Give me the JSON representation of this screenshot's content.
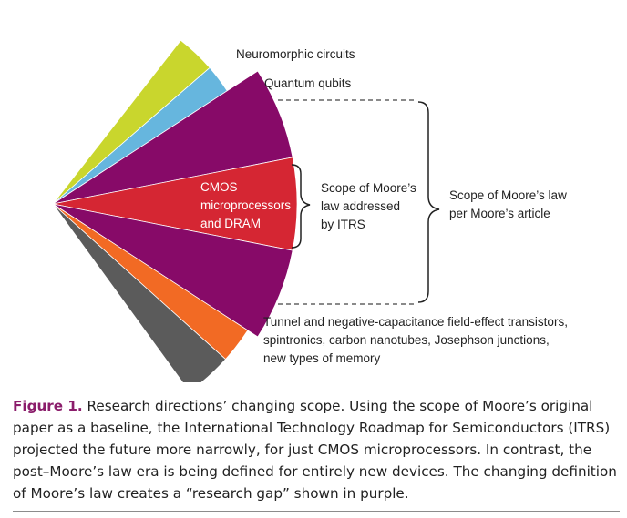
{
  "figure": {
    "segments": [
      {
        "id": "neuromorphic",
        "color": "#c9d62d"
      },
      {
        "id": "quantum",
        "color": "#66b6de"
      },
      {
        "id": "research-gap-upper",
        "color": "#870a68"
      },
      {
        "id": "cmos",
        "color": "#d52633"
      },
      {
        "id": "research-gap-lower",
        "color": "#870a68"
      },
      {
        "id": "tunnel",
        "color": "#f26a24"
      },
      {
        "id": "other",
        "color": "#5b5b5b"
      }
    ],
    "labels": {
      "neuromorphic": "Neuromorphic circuits",
      "quantum": "Quantum qubits",
      "cmos_lines": [
        "CMOS",
        "microprocessors",
        "and DRAM"
      ],
      "itrs_lines": [
        "Scope of Moore’s",
        "law addressed",
        "by ITRS"
      ],
      "moore_lines": [
        "Scope of Moore’s law",
        "per Moore’s article"
      ],
      "tunnel_lines": [
        "Tunnel and negative-capacitance field-effect transistors,",
        "spintronics, carbon nanotubes, Josephson junctions,",
        "new types of memory"
      ]
    }
  },
  "caption": {
    "label": "Figure 1.",
    "text": " Research directions’ changing scope. Using the scope of Moore’s original paper as a baseline, the International Technology Roadmap for Semiconductors (ITRS) projected the future more narrowly, for just CMOS microprocessors. In contrast, the post–Moore’s law era is being defined for entirely new devices. The changing definition of Moore’s law creates a “research gap” shown in purple."
  },
  "colors": {
    "caption_label": "#8b1d6b",
    "dash_line": "#444444",
    "brace": "#222222"
  }
}
